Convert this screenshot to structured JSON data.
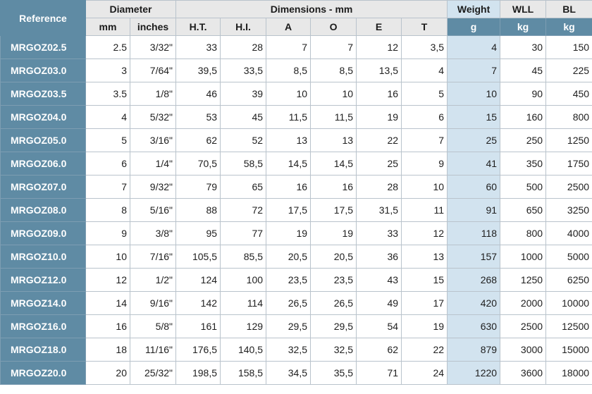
{
  "header": {
    "reference": "Reference",
    "diameter": "Diameter",
    "dimensions": "Dimensions - mm",
    "weight": "Weight",
    "wll": "WLL",
    "bl": "BL",
    "sub": [
      "mm",
      "inches",
      "H.T.",
      "H.I.",
      "A",
      "O",
      "E",
      "T",
      "g",
      "kg",
      "kg"
    ]
  },
  "rows": [
    {
      "ref": "MRGOZ02.5",
      "mm": "2.5",
      "inches": "3/32\"",
      "ht": "33",
      "hi": "28",
      "a": "7",
      "o": "7",
      "e": "12",
      "t": "3,5",
      "g": "4",
      "wll": "30",
      "bl": "150"
    },
    {
      "ref": "MRGOZ03.0",
      "mm": "3",
      "inches": "7/64\"",
      "ht": "39,5",
      "hi": "33,5",
      "a": "8,5",
      "o": "8,5",
      "e": "13,5",
      "t": "4",
      "g": "7",
      "wll": "45",
      "bl": "225"
    },
    {
      "ref": "MRGOZ03.5",
      "mm": "3.5",
      "inches": "1/8\"",
      "ht": "46",
      "hi": "39",
      "a": "10",
      "o": "10",
      "e": "16",
      "t": "5",
      "g": "10",
      "wll": "90",
      "bl": "450"
    },
    {
      "ref": "MRGOZ04.0",
      "mm": "4",
      "inches": "5/32\"",
      "ht": "53",
      "hi": "45",
      "a": "11,5",
      "o": "11,5",
      "e": "19",
      "t": "6",
      "g": "15",
      "wll": "160",
      "bl": "800"
    },
    {
      "ref": "MRGOZ05.0",
      "mm": "5",
      "inches": "3/16\"",
      "ht": "62",
      "hi": "52",
      "a": "13",
      "o": "13",
      "e": "22",
      "t": "7",
      "g": "25",
      "wll": "250",
      "bl": "1250"
    },
    {
      "ref": "MRGOZ06.0",
      "mm": "6",
      "inches": "1/4\"",
      "ht": "70,5",
      "hi": "58,5",
      "a": "14,5",
      "o": "14,5",
      "e": "25",
      "t": "9",
      "g": "41",
      "wll": "350",
      "bl": "1750"
    },
    {
      "ref": "MRGOZ07.0",
      "mm": "7",
      "inches": "9/32\"",
      "ht": "79",
      "hi": "65",
      "a": "16",
      "o": "16",
      "e": "28",
      "t": "10",
      "g": "60",
      "wll": "500",
      "bl": "2500"
    },
    {
      "ref": "MRGOZ08.0",
      "mm": "8",
      "inches": "5/16\"",
      "ht": "88",
      "hi": "72",
      "a": "17,5",
      "o": "17,5",
      "e": "31,5",
      "t": "11",
      "g": "91",
      "wll": "650",
      "bl": "3250"
    },
    {
      "ref": "MRGOZ09.0",
      "mm": "9",
      "inches": "3/8\"",
      "ht": "95",
      "hi": "77",
      "a": "19",
      "o": "19",
      "e": "33",
      "t": "12",
      "g": "118",
      "wll": "800",
      "bl": "4000"
    },
    {
      "ref": "MRGOZ10.0",
      "mm": "10",
      "inches": "7/16\"",
      "ht": "105,5",
      "hi": "85,5",
      "a": "20,5",
      "o": "20,5",
      "e": "36",
      "t": "13",
      "g": "157",
      "wll": "1000",
      "bl": "5000"
    },
    {
      "ref": "MRGOZ12.0",
      "mm": "12",
      "inches": "1/2\"",
      "ht": "124",
      "hi": "100",
      "a": "23,5",
      "o": "23,5",
      "e": "43",
      "t": "15",
      "g": "268",
      "wll": "1250",
      "bl": "6250"
    },
    {
      "ref": "MRGOZ14.0",
      "mm": "14",
      "inches": "9/16\"",
      "ht": "142",
      "hi": "114",
      "a": "26,5",
      "o": "26,5",
      "e": "49",
      "t": "17",
      "g": "420",
      "wll": "2000",
      "bl": "10000"
    },
    {
      "ref": "MRGOZ16.0",
      "mm": "16",
      "inches": "5/8\"",
      "ht": "161",
      "hi": "129",
      "a": "29,5",
      "o": "29,5",
      "e": "54",
      "t": "19",
      "g": "630",
      "wll": "2500",
      "bl": "12500"
    },
    {
      "ref": "MRGOZ18.0",
      "mm": "18",
      "inches": "11/16\"",
      "ht": "176,5",
      "hi": "140,5",
      "a": "32,5",
      "o": "32,5",
      "e": "62",
      "t": "22",
      "g": "879",
      "wll": "3000",
      "bl": "15000"
    },
    {
      "ref": "MRGOZ20.0",
      "mm": "20",
      "inches": "25/32\"",
      "ht": "198,5",
      "hi": "158,5",
      "a": "34,5",
      "o": "35,5",
      "e": "71",
      "t": "24",
      "g": "1220",
      "wll": "3600",
      "bl": "18000"
    }
  ]
}
